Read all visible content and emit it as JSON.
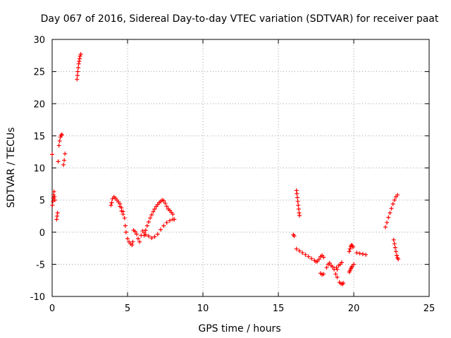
{
  "chart_data": {
    "type": "scatter",
    "title": "Day 067 of 2016, Sidereal Day-to-day VTEC variation (SDTVAR) for receiver paat",
    "xlabel": "GPS time / hours",
    "ylabel": "SDTVAR / TECUs",
    "xlim": [
      0,
      25
    ],
    "ylim": [
      -10,
      30
    ],
    "xticks": [
      0,
      5,
      10,
      15,
      20,
      25
    ],
    "yticks": [
      -10,
      -5,
      0,
      5,
      10,
      15,
      20,
      25,
      30
    ],
    "xtick_labels": [
      "0",
      "5",
      "10",
      "15",
      "20",
      "25"
    ],
    "ytick_labels": [
      "-10",
      "-5",
      "0",
      "5",
      "10",
      "15",
      "20",
      "25",
      "30"
    ],
    "grid": true,
    "marker": "+",
    "color": "#ff0000",
    "series": [
      {
        "name": "SDTVAR",
        "points": [
          [
            0.0,
            12.1
          ],
          [
            0.02,
            4.2
          ],
          [
            0.05,
            4.8
          ],
          [
            0.08,
            5.3
          ],
          [
            0.1,
            5.8
          ],
          [
            0.12,
            6.3
          ],
          [
            0.15,
            5.5
          ],
          [
            0.18,
            5.0
          ],
          [
            0.3,
            2.0
          ],
          [
            0.33,
            2.5
          ],
          [
            0.36,
            3.0
          ],
          [
            0.4,
            11.0
          ],
          [
            0.45,
            13.5
          ],
          [
            0.5,
            14.2
          ],
          [
            0.55,
            14.8
          ],
          [
            0.6,
            15.1
          ],
          [
            0.65,
            15.2
          ],
          [
            0.75,
            10.5
          ],
          [
            0.8,
            11.2
          ],
          [
            0.85,
            12.2
          ],
          [
            1.65,
            23.8
          ],
          [
            1.68,
            24.4
          ],
          [
            1.7,
            25.0
          ],
          [
            1.73,
            25.6
          ],
          [
            1.76,
            26.2
          ],
          [
            1.79,
            26.6
          ],
          [
            1.82,
            27.0
          ],
          [
            1.85,
            27.4
          ],
          [
            1.9,
            27.7
          ],
          [
            3.9,
            4.2
          ],
          [
            3.95,
            4.6
          ],
          [
            4.0,
            5.2
          ],
          [
            4.1,
            5.5
          ],
          [
            4.2,
            5.3
          ],
          [
            4.3,
            5.0
          ],
          [
            4.4,
            4.7
          ],
          [
            4.5,
            4.4
          ],
          [
            4.6,
            3.8
          ],
          [
            4.7,
            3.2
          ],
          [
            4.8,
            2.2
          ],
          [
            4.85,
            1.0
          ],
          [
            4.9,
            0.0
          ],
          [
            5.0,
            -1.0
          ],
          [
            5.1,
            -1.5
          ],
          [
            5.2,
            -1.8
          ],
          [
            5.3,
            -2.0
          ],
          [
            5.35,
            -1.5
          ],
          [
            4.5,
            4.0
          ],
          [
            4.6,
            3.3
          ],
          [
            4.7,
            2.8
          ],
          [
            5.4,
            0.3
          ],
          [
            5.5,
            0.1
          ],
          [
            5.6,
            -0.3
          ],
          [
            5.7,
            -1.0
          ],
          [
            5.8,
            -1.5
          ],
          [
            5.9,
            -0.5
          ],
          [
            6.0,
            0.2
          ],
          [
            6.1,
            -0.1
          ],
          [
            6.2,
            -0.4
          ],
          [
            6.4,
            -0.6
          ],
          [
            6.6,
            -0.9
          ],
          [
            6.8,
            -0.7
          ],
          [
            7.0,
            -0.3
          ],
          [
            7.2,
            0.4
          ],
          [
            7.4,
            1.0
          ],
          [
            7.6,
            1.5
          ],
          [
            7.8,
            1.8
          ],
          [
            8.0,
            2.0
          ],
          [
            8.1,
            2.0
          ],
          [
            6.1,
            -0.5
          ],
          [
            6.2,
            0.3
          ],
          [
            6.3,
            1.0
          ],
          [
            6.4,
            1.6
          ],
          [
            6.5,
            2.2
          ],
          [
            6.6,
            2.7
          ],
          [
            6.7,
            3.2
          ],
          [
            6.8,
            3.6
          ],
          [
            6.9,
            4.0
          ],
          [
            7.0,
            4.3
          ],
          [
            7.1,
            4.6
          ],
          [
            7.2,
            4.8
          ],
          [
            7.3,
            5.0
          ],
          [
            7.4,
            4.9
          ],
          [
            7.5,
            4.5
          ],
          [
            7.6,
            4.0
          ],
          [
            7.7,
            3.6
          ],
          [
            7.8,
            3.4
          ],
          [
            7.9,
            3.1
          ],
          [
            8.0,
            2.8
          ],
          [
            16.0,
            -0.4
          ],
          [
            16.05,
            -0.6
          ],
          [
            16.2,
            6.5
          ],
          [
            16.23,
            6.0
          ],
          [
            16.26,
            5.4
          ],
          [
            16.29,
            4.8
          ],
          [
            16.32,
            4.2
          ],
          [
            16.35,
            3.6
          ],
          [
            16.38,
            3.0
          ],
          [
            16.4,
            2.6
          ],
          [
            16.2,
            -2.6
          ],
          [
            16.4,
            -2.9
          ],
          [
            16.6,
            -3.2
          ],
          [
            16.8,
            -3.5
          ],
          [
            17.0,
            -3.8
          ],
          [
            17.2,
            -4.1
          ],
          [
            17.4,
            -4.4
          ],
          [
            17.5,
            -4.6
          ],
          [
            17.6,
            -4.5
          ],
          [
            17.7,
            -4.2
          ],
          [
            17.8,
            -3.8
          ],
          [
            17.9,
            -3.6
          ],
          [
            18.0,
            -3.9
          ],
          [
            17.8,
            -6.4
          ],
          [
            17.9,
            -6.6
          ],
          [
            18.0,
            -6.5
          ],
          [
            18.2,
            -5.5
          ],
          [
            18.3,
            -5.0
          ],
          [
            18.4,
            -4.8
          ],
          [
            18.5,
            -5.2
          ],
          [
            18.6,
            -5.4
          ],
          [
            18.7,
            -5.8
          ],
          [
            18.8,
            -6.5
          ],
          [
            18.9,
            -7.0
          ],
          [
            18.85,
            -5.5
          ],
          [
            18.9,
            -5.8
          ],
          [
            19.0,
            -5.2
          ],
          [
            19.1,
            -5.0
          ],
          [
            19.2,
            -4.7
          ],
          [
            19.05,
            -7.8
          ],
          [
            19.15,
            -8.0
          ],
          [
            19.25,
            -8.1
          ],
          [
            19.3,
            -7.9
          ],
          [
            19.7,
            -3.0
          ],
          [
            19.75,
            -2.6
          ],
          [
            19.8,
            -2.2
          ],
          [
            19.85,
            -2.0
          ],
          [
            19.9,
            -2.1
          ],
          [
            19.95,
            -2.3
          ],
          [
            19.7,
            -6.2
          ],
          [
            19.75,
            -6.0
          ],
          [
            19.8,
            -5.7
          ],
          [
            19.85,
            -5.5
          ],
          [
            19.9,
            -5.3
          ],
          [
            20.0,
            -5.0
          ],
          [
            20.2,
            -3.2
          ],
          [
            20.4,
            -3.3
          ],
          [
            20.6,
            -3.4
          ],
          [
            20.8,
            -3.5
          ],
          [
            22.1,
            0.8
          ],
          [
            22.2,
            1.5
          ],
          [
            22.3,
            2.3
          ],
          [
            22.4,
            3.0
          ],
          [
            22.5,
            3.7
          ],
          [
            22.6,
            4.4
          ],
          [
            22.7,
            5.0
          ],
          [
            22.8,
            5.5
          ],
          [
            22.9,
            5.8
          ],
          [
            22.65,
            -1.2
          ],
          [
            22.7,
            -1.8
          ],
          [
            22.75,
            -2.4
          ],
          [
            22.8,
            -3.0
          ],
          [
            22.85,
            -3.6
          ],
          [
            22.9,
            -4.0
          ],
          [
            22.95,
            -4.2
          ]
        ]
      }
    ]
  }
}
